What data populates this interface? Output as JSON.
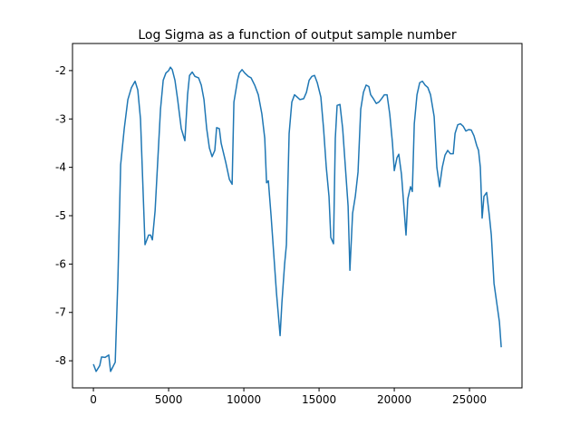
{
  "chart_data": {
    "type": "line",
    "title": "Log Sigma as a function of output sample number",
    "x": [
      0,
      180,
      420,
      540,
      780,
      1020,
      1140,
      1450,
      1630,
      1810,
      2050,
      2290,
      2530,
      2770,
      2950,
      3130,
      3430,
      3670,
      3800,
      3920,
      4100,
      4340,
      4460,
      4640,
      4820,
      5000,
      5120,
      5240,
      5420,
      5600,
      5840,
      6080,
      6260,
      6390,
      6570,
      6750,
      6990,
      7170,
      7350,
      7530,
      7710,
      7890,
      8070,
      8190,
      8370,
      8490,
      8800,
      9040,
      9220,
      9340,
      9580,
      9700,
      9880,
      10060,
      10300,
      10480,
      10720,
      10960,
      11200,
      11390,
      11510,
      11630,
      11810,
      11990,
      12170,
      12410,
      12530,
      12710,
      12830,
      13010,
      13190,
      13370,
      13550,
      13730,
      13980,
      14160,
      14340,
      14520,
      14700,
      14880,
      15120,
      15300,
      15480,
      15660,
      15780,
      15960,
      16080,
      16200,
      16390,
      16570,
      16750,
      16930,
      17050,
      17230,
      17410,
      17590,
      17770,
      17950,
      18130,
      18310,
      18430,
      18610,
      18800,
      18980,
      19160,
      19340,
      19520,
      19700,
      19880,
      20000,
      20180,
      20300,
      20480,
      20660,
      20780,
      20900,
      21080,
      21200,
      21330,
      21510,
      21690,
      21870,
      22050,
      22230,
      22410,
      22650,
      22830,
      23010,
      23190,
      23370,
      23550,
      23730,
      23920,
      24040,
      24220,
      24400,
      24580,
      24760,
      24940,
      25120,
      25300,
      25480,
      25600,
      25720,
      25840,
      25960,
      26140,
      26320,
      26450,
      26630,
      26810,
      26990,
      27110
    ],
    "series": [
      {
        "color": "#1f77b4",
        "values": [
          -8.07,
          -8.22,
          -8.1,
          -7.92,
          -7.93,
          -7.88,
          -8.22,
          -8.03,
          -6.3,
          -3.95,
          -3.2,
          -2.6,
          -2.35,
          -2.22,
          -2.4,
          -3.0,
          -5.6,
          -5.4,
          -5.4,
          -5.5,
          -4.9,
          -3.5,
          -2.8,
          -2.2,
          -2.05,
          -2.0,
          -1.93,
          -1.98,
          -2.2,
          -2.6,
          -3.2,
          -3.45,
          -2.5,
          -2.1,
          -2.03,
          -2.12,
          -2.15,
          -2.3,
          -2.6,
          -3.2,
          -3.6,
          -3.78,
          -3.65,
          -3.18,
          -3.2,
          -3.5,
          -3.9,
          -4.25,
          -4.35,
          -2.65,
          -2.2,
          -2.05,
          -1.98,
          -2.05,
          -2.12,
          -2.15,
          -2.3,
          -2.5,
          -2.9,
          -3.4,
          -4.32,
          -4.28,
          -5.0,
          -5.8,
          -6.6,
          -7.48,
          -6.8,
          -6.0,
          -5.6,
          -3.3,
          -2.65,
          -2.5,
          -2.55,
          -2.6,
          -2.58,
          -2.45,
          -2.2,
          -2.12,
          -2.1,
          -2.25,
          -2.55,
          -3.2,
          -4.0,
          -4.6,
          -5.45,
          -5.58,
          -3.4,
          -2.72,
          -2.7,
          -3.2,
          -4.0,
          -4.8,
          -6.13,
          -4.95,
          -4.6,
          -4.1,
          -2.8,
          -2.45,
          -2.3,
          -2.33,
          -2.5,
          -2.58,
          -2.68,
          -2.65,
          -2.58,
          -2.5,
          -2.5,
          -2.9,
          -3.5,
          -4.07,
          -3.8,
          -3.73,
          -4.15,
          -4.9,
          -5.4,
          -4.65,
          -4.4,
          -4.5,
          -3.1,
          -2.5,
          -2.25,
          -2.22,
          -2.3,
          -2.35,
          -2.5,
          -2.95,
          -4.0,
          -4.4,
          -4.0,
          -3.75,
          -3.65,
          -3.72,
          -3.72,
          -3.3,
          -3.12,
          -3.1,
          -3.15,
          -3.25,
          -3.22,
          -3.23,
          -3.35,
          -3.55,
          -3.65,
          -4.0,
          -5.05,
          -4.6,
          -4.52,
          -5.0,
          -5.4,
          -6.4,
          -6.8,
          -7.2,
          -7.72
        ]
      }
    ],
    "xlim": [
      -1390,
      28490
    ],
    "xticks": [
      0,
      5000,
      10000,
      15000,
      20000,
      25000
    ],
    "ylim": [
      -8.56,
      -1.44
    ],
    "yticks": [
      -8,
      -7,
      -6,
      -5,
      -4,
      -3,
      -2
    ]
  }
}
